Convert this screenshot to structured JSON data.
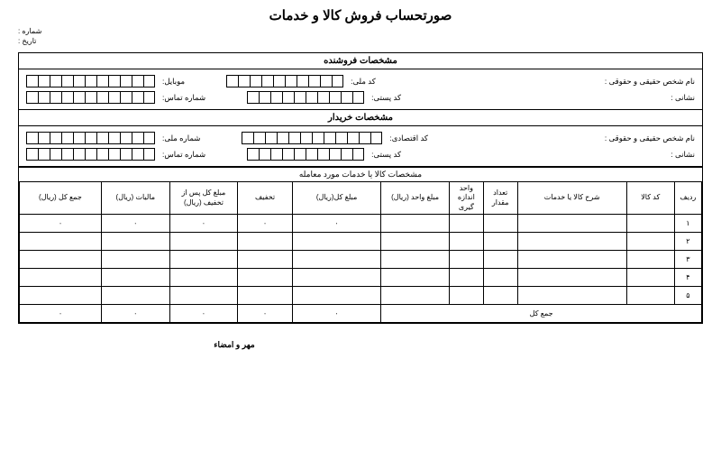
{
  "title": "صورتحساب فروش کالا و خدمات",
  "meta": {
    "number_label": "شماره :",
    "date_label": "تاریخ :"
  },
  "seller": {
    "header": "مشخصات فروشنده",
    "name_label": "نام شخص حقیقی و حقوقی :",
    "national_label": "کد ملی:",
    "mobile_label": "موبایل:",
    "address_label": "نشانی :",
    "postal_label": "کد پستی:",
    "phone_label": "شماره تماس:"
  },
  "buyer": {
    "header": "مشخصات خریدار",
    "name_label": "نام شخص حقیقی و حقوقی :",
    "econ_label": "کد اقتصادی:",
    "national_label": "شماره ملی:",
    "address_label": "نشانی :",
    "postal_label": "کد پستی:",
    "phone_label": "شماره تماس:"
  },
  "items": {
    "header": "مشخصات کالا یا خدمات مورد معامله",
    "cols": {
      "row": "ردیف",
      "code": "کد کالا",
      "desc": "شرح کالا یا خدمات",
      "qty": "تعداد مقدار",
      "unit": "واحد اندازه گیری",
      "uprice": "مبلغ واحد (ریال)",
      "total": "مبلغ کل(ریال)",
      "disc": "تخفیف",
      "after": "مبلغ کل پس از تخفیف (ریال)",
      "tax": "مالیات (ریال)",
      "grand": "جمع کل (ریال)"
    },
    "rows": [
      "۱",
      "۲",
      "۳",
      "۴",
      "۵"
    ],
    "zero": "۰",
    "sum_label": "جمع کل"
  },
  "signature": "مهر و امضاء"
}
